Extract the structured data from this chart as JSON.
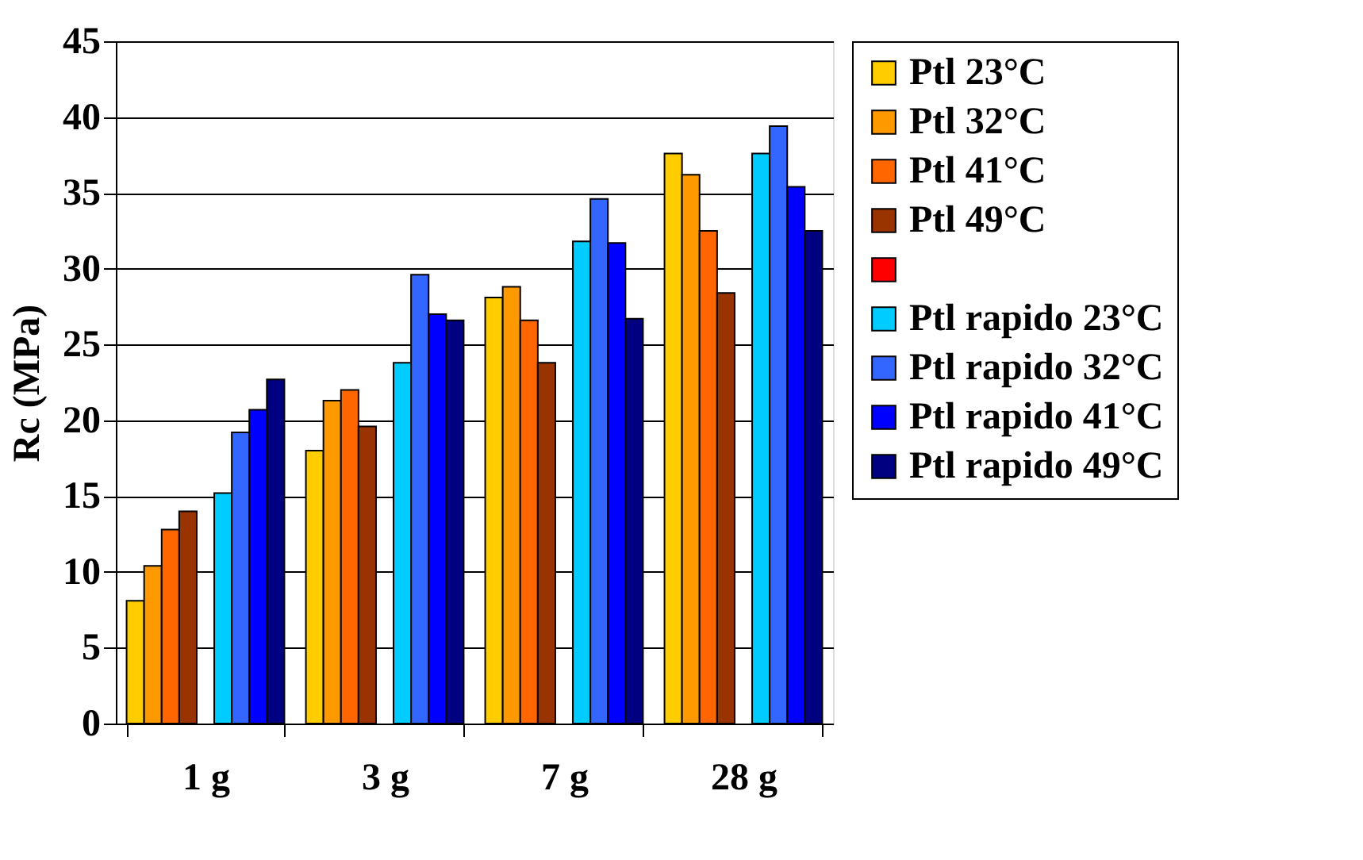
{
  "chart_data": {
    "type": "bar",
    "ylabel": "Rc (MPa)",
    "categories": [
      "1 g",
      "3 g",
      "7 g",
      "28 g"
    ],
    "series": [
      {
        "name": "Ptl 23°C",
        "color": "#ffcc00",
        "values": [
          8.1,
          18.0,
          28.1,
          37.6
        ]
      },
      {
        "name": "Ptl 32°C",
        "color": "#ff9900",
        "values": [
          10.4,
          21.3,
          28.8,
          36.2
        ]
      },
      {
        "name": "Ptl 41°C",
        "color": "#ff6600",
        "values": [
          12.8,
          22.0,
          26.6,
          32.5
        ]
      },
      {
        "name": "Ptl 49°C",
        "color": "#993300",
        "values": [
          14.0,
          19.6,
          23.8,
          28.4
        ]
      },
      {
        "color": "#ff0000",
        "values": [
          null,
          null,
          null,
          null
        ]
      },
      {
        "name": "Ptl rapido 23°C",
        "color": "#00ccff",
        "values": [
          15.2,
          23.8,
          31.8,
          37.6
        ]
      },
      {
        "name": "Ptl rapido 32°C",
        "color": "#3366ff",
        "values": [
          19.2,
          29.6,
          34.6,
          39.4
        ]
      },
      {
        "name": "Ptl rapido 41°C",
        "color": "#0000ff",
        "values": [
          20.7,
          27.0,
          31.7,
          35.4
        ]
      },
      {
        "name": "Ptl rapido 49°C",
        "color": "#000080",
        "values": [
          22.7,
          26.6,
          26.7,
          32.5
        ]
      }
    ],
    "ylim": [
      0,
      45
    ],
    "yticks": [
      0,
      5,
      10,
      15,
      20,
      25,
      30,
      35,
      40,
      45
    ],
    "grid": "y",
    "legend": "right"
  }
}
